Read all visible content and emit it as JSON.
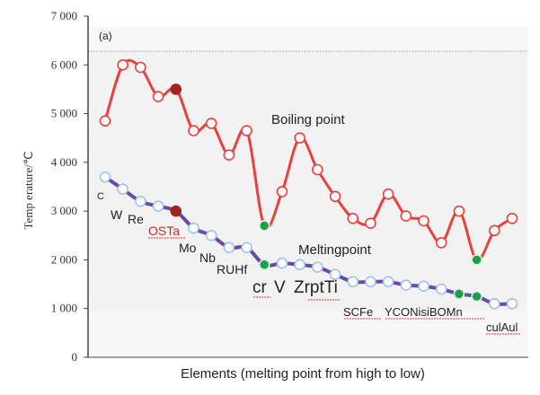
{
  "chart_data": {
    "type": "line",
    "panel_label": "(a)",
    "ylabel": "Temp erature/℃",
    "xlabel": "Elements (melting point from high to low)",
    "ylim": [
      0,
      7000
    ],
    "yticks": [
      0,
      1000,
      2000,
      3000,
      4000,
      5000,
      6000,
      7000
    ],
    "ytick_labels": [
      "0",
      "1 000",
      "2 000",
      "3 000",
      "4 000",
      "5 000",
      "6 000",
      "7 000"
    ],
    "grid": false,
    "series": [
      {
        "name": "Boiling point",
        "color": "#e8423f",
        "values": [
          4850,
          6000,
          5950,
          5350,
          5500,
          4650,
          4800,
          4150,
          4650,
          2700,
          3400,
          4500,
          3850,
          3300,
          2850,
          2750,
          3350,
          2900,
          2800,
          2350,
          3000,
          2000,
          2600,
          2850
        ]
      },
      {
        "name": "Meltingpoint",
        "color": "#6a4aa8",
        "values": [
          3700,
          3450,
          3200,
          3100,
          3000,
          2650,
          2500,
          2250,
          2250,
          1900,
          1930,
          1900,
          1850,
          1700,
          1550,
          1550,
          1550,
          1480,
          1460,
          1400,
          1300,
          1250,
          1100,
          1100
        ]
      }
    ],
    "highlight_indices": {
      "dark_red": [
        4
      ],
      "green": [
        9,
        21
      ]
    },
    "element_labels": [
      "C",
      "W",
      "Re",
      "OSTa",
      "Mo",
      "Nb",
      "RUHf",
      "cr",
      "V",
      "ZrptTi",
      "SCFe",
      "YCONisiBOMn",
      "culAul"
    ]
  }
}
